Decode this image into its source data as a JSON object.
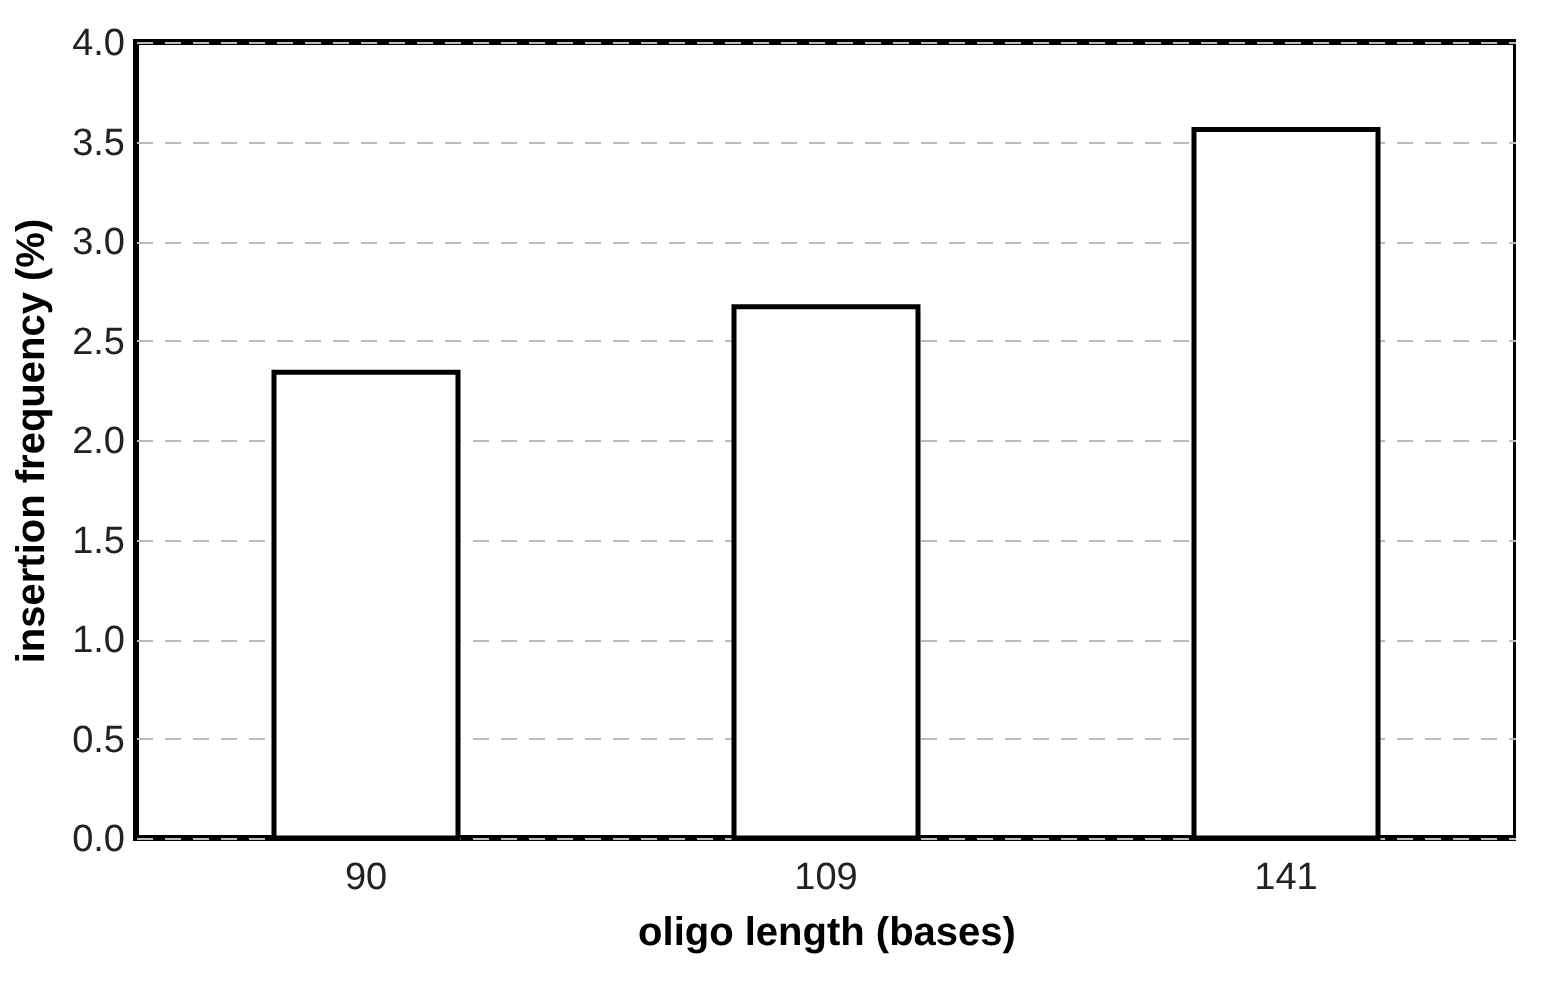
{
  "chart_data": {
    "type": "bar",
    "xlabel": "oligo length (bases)",
    "ylabel": "insertion frequency (%)",
    "categories": [
      "90",
      "109",
      "141"
    ],
    "values": [
      2.34,
      2.67,
      3.56
    ],
    "color": "#ffffff",
    "ylim": [
      0,
      4
    ],
    "yticks": [
      {
        "value": 0,
        "label": "0.0"
      },
      0.5,
      {
        "value": 1,
        "label": "1.0"
      },
      1.5,
      {
        "value": 2,
        "label": "2.0"
      },
      2.5,
      {
        "value": 3,
        "label": "3.0"
      },
      3.5,
      {
        "value": 4,
        "label": "4.0"
      }
    ],
    "grid": "y"
  }
}
